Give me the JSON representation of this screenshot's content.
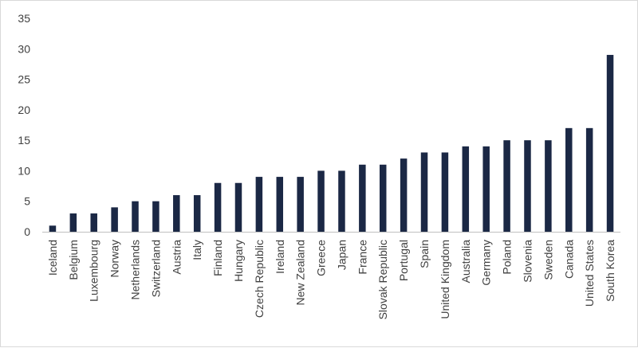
{
  "chart_data": {
    "type": "bar",
    "title": "",
    "xlabel": "",
    "ylabel": "",
    "ylim": [
      0,
      35
    ],
    "yticks": [
      0,
      5,
      10,
      15,
      20,
      25,
      30,
      35
    ],
    "grid": false,
    "legend": "none",
    "bar_color": "#1b2845",
    "categories": [
      "Iceland",
      "Belgium",
      "Luxembourg",
      "Norway",
      "Netherlands",
      "Switzerland",
      "Austria",
      "Italy",
      "Finland",
      "Hungary",
      "Czech Republic",
      "Ireland",
      "New Zealand",
      "Greece",
      "Japan",
      "France",
      "Slovak Republic",
      "Portugal",
      "Spain",
      "United Kingdom",
      "Australia",
      "Germany",
      "Poland",
      "Slovenia",
      "Sweden",
      "Canada",
      "United States",
      "South Korea"
    ],
    "values": [
      1,
      3,
      3,
      4,
      5,
      5,
      6,
      6,
      8,
      8,
      9,
      9,
      9,
      10,
      10,
      11,
      11,
      12,
      13,
      13,
      14,
      14,
      15,
      15,
      15,
      17,
      17,
      29
    ]
  }
}
